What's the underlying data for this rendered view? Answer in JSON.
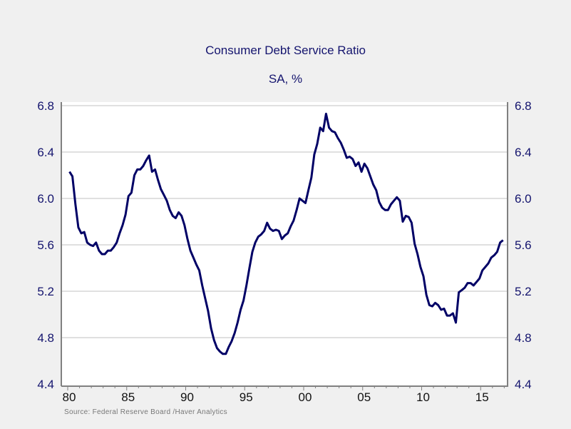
{
  "chart_data": {
    "type": "line",
    "title": "Consumer Debt Service Ratio",
    "subtitle": "SA, %",
    "source": "Source:  Federal Reserve Board /Haver Analytics",
    "frequency": "quarterly",
    "start": "1980Q1",
    "ylim": [
      4.4,
      6.8
    ],
    "yticks": [
      "4.4",
      "4.8",
      "5.2",
      "5.6",
      "6.0",
      "6.4",
      "6.8"
    ],
    "xticks": [
      {
        "label": "80",
        "year": 1980
      },
      {
        "label": "85",
        "year": 1985
      },
      {
        "label": "90",
        "year": 1990
      },
      {
        "label": "95",
        "year": 1995
      },
      {
        "label": "00",
        "year": 2000
      },
      {
        "label": "05",
        "year": 2005
      },
      {
        "label": "10",
        "year": 2010
      },
      {
        "label": "15",
        "year": 2015
      }
    ],
    "xlim": [
      1979.8,
      2017.3
    ],
    "grid": true,
    "dual_y_axis": true,
    "line_color": "#000066",
    "text_color": "#14146e",
    "values": [
      6.23,
      6.19,
      5.95,
      5.75,
      5.7,
      5.71,
      5.62,
      5.6,
      5.59,
      5.62,
      5.55,
      5.52,
      5.52,
      5.55,
      5.55,
      5.58,
      5.62,
      5.7,
      5.77,
      5.86,
      6.02,
      6.05,
      6.2,
      6.25,
      6.25,
      6.28,
      6.33,
      6.37,
      6.23,
      6.25,
      6.16,
      6.08,
      6.03,
      5.98,
      5.9,
      5.85,
      5.83,
      5.88,
      5.85,
      5.77,
      5.65,
      5.55,
      5.49,
      5.43,
      5.38,
      5.25,
      5.14,
      5.03,
      4.88,
      4.78,
      4.71,
      4.68,
      4.66,
      4.66,
      4.72,
      4.77,
      4.84,
      4.93,
      5.04,
      5.12,
      5.25,
      5.4,
      5.54,
      5.62,
      5.67,
      5.69,
      5.72,
      5.79,
      5.74,
      5.72,
      5.73,
      5.72,
      5.65,
      5.68,
      5.7,
      5.76,
      5.81,
      5.9,
      6.0,
      5.98,
      5.96,
      6.07,
      6.18,
      6.38,
      6.47,
      6.61,
      6.58,
      6.73,
      6.61,
      6.58,
      6.57,
      6.52,
      6.48,
      6.42,
      6.35,
      6.36,
      6.34,
      6.28,
      6.31,
      6.23,
      6.3,
      6.26,
      6.19,
      6.12,
      6.07,
      5.97,
      5.92,
      5.9,
      5.9,
      5.95,
      5.98,
      6.01,
      5.98,
      5.8,
      5.85,
      5.84,
      5.79,
      5.61,
      5.52,
      5.41,
      5.33,
      5.17,
      5.08,
      5.07,
      5.1,
      5.08,
      5.04,
      5.05,
      4.99,
      4.99,
      5.01,
      4.93,
      5.19,
      5.21,
      5.23,
      5.27,
      5.27,
      5.25,
      5.28,
      5.31,
      5.38,
      5.41,
      5.44,
      5.49,
      5.51,
      5.54,
      5.62,
      5.64
    ]
  }
}
